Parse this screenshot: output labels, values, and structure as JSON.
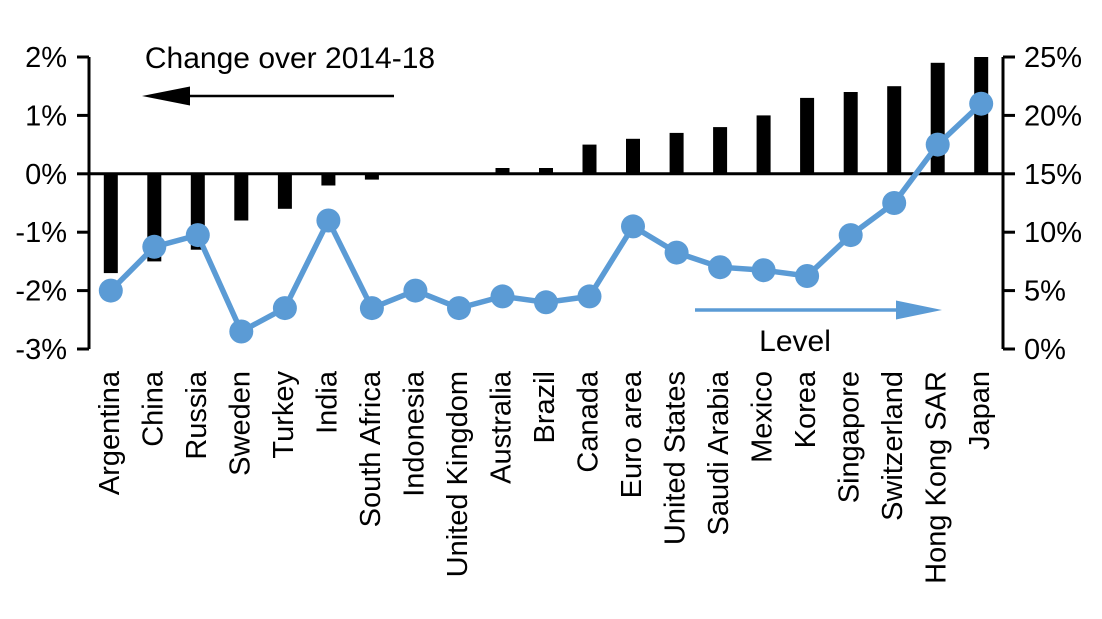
{
  "chart_data": {
    "type": "combo-bar-line",
    "title": "",
    "grid": false,
    "background": "#ffffff",
    "categories": [
      "Argentina",
      "China",
      "Russia",
      "Sweden",
      "Turkey",
      "India",
      "South Africa",
      "Indonesia",
      "United Kingdom",
      "Australia",
      "Brazil",
      "Canada",
      "Euro area",
      "United States",
      "Saudi Arabia",
      "Mexico",
      "Korea",
      "Singapore",
      "Switzerland",
      "Hong Kong SAR",
      "Japan"
    ],
    "series": [
      {
        "name": "Change over 2014-18",
        "type": "bar",
        "axis": "left",
        "unit": "percentage points",
        "color": "#000000",
        "values": [
          -1.7,
          -1.5,
          -1.3,
          -0.8,
          -0.6,
          -0.2,
          -0.1,
          0,
          0,
          0.1,
          0.1,
          0.5,
          0.6,
          0.7,
          0.8,
          1,
          1.3,
          1.4,
          1.5,
          1.9,
          2
        ]
      },
      {
        "name": "Level",
        "type": "line",
        "axis": "right",
        "unit": "%",
        "color": "#5b9bd5",
        "values": [
          5,
          8.75,
          9.75,
          1.5,
          3.5,
          11,
          3.5,
          5,
          3.5,
          4.5,
          4,
          4.5,
          10.5,
          8.25,
          7,
          6.75,
          6.25,
          9.75,
          12.5,
          17.5,
          21
        ]
      }
    ],
    "left_axis": {
      "min": -3,
      "max": 2,
      "tick_step": 1,
      "tick_labels": [
        "2%",
        "1%",
        "0%",
        "-1%",
        "-2%",
        "-3%"
      ]
    },
    "right_axis": {
      "min": 0,
      "max": 25,
      "tick_step": 5,
      "tick_labels": [
        "25%",
        "20%",
        "15%",
        "10%",
        "5%",
        "0%"
      ]
    },
    "annotations": [
      {
        "id": "change",
        "text": "Change over 2014-18",
        "arrow_direction": "left",
        "arrow_color": "#000000",
        "text_color": "#000000"
      },
      {
        "id": "level",
        "text": "Level",
        "arrow_direction": "right",
        "arrow_color": "#5b9bd5",
        "text_color": "#000000"
      }
    ],
    "legend_position": "none"
  }
}
